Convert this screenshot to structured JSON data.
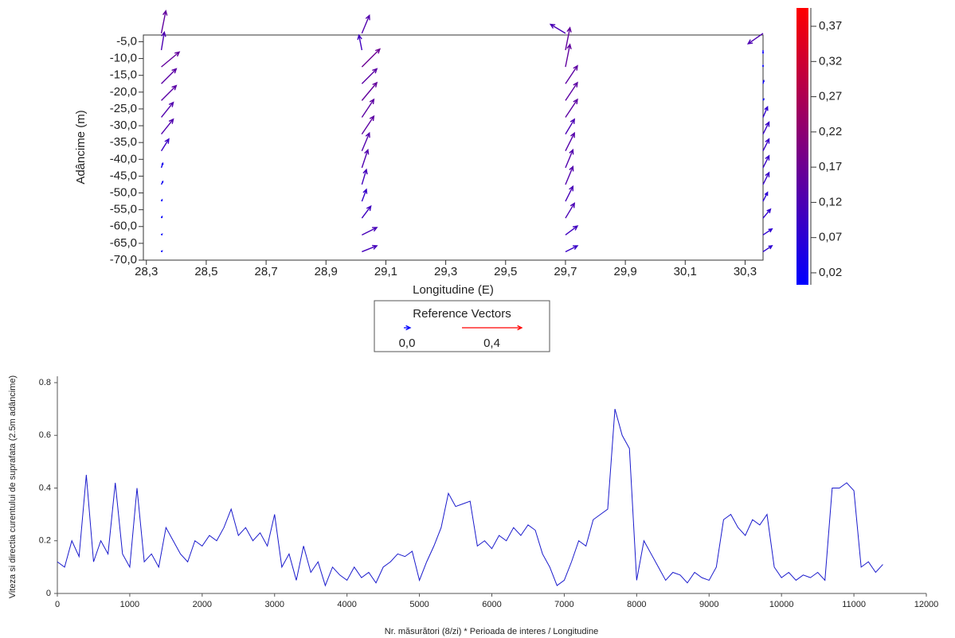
{
  "chart_data": [
    {
      "type": "quiver",
      "x_label": "Longitudine (E)",
      "y_label": "Adâncime (m)",
      "xlim": [
        28.29,
        30.36
      ],
      "ylim": [
        -70,
        -3
      ],
      "xticks": [
        {
          "value": 28.3,
          "label": "28,3"
        },
        {
          "value": 28.5,
          "label": "28,5"
        },
        {
          "value": 28.7,
          "label": "28,7"
        },
        {
          "value": 28.9,
          "label": "28,9"
        },
        {
          "value": 29.1,
          "label": "29,1"
        },
        {
          "value": 29.3,
          "label": "29,3"
        },
        {
          "value": 29.5,
          "label": "29,5"
        },
        {
          "value": 29.7,
          "label": "29,7"
        },
        {
          "value": 29.9,
          "label": "29,9"
        },
        {
          "value": 30.1,
          "label": "30,1"
        },
        {
          "value": 30.3,
          "label": "30,3"
        }
      ],
      "yticks": [
        {
          "value": -70,
          "label": "-70,0"
        },
        {
          "value": -65,
          "label": "-65,0"
        },
        {
          "value": -60,
          "label": "-60,0"
        },
        {
          "value": -55,
          "label": "-55,0"
        },
        {
          "value": -50,
          "label": "-50,0"
        },
        {
          "value": -45,
          "label": "-45,0"
        },
        {
          "value": -40,
          "label": "-40,0"
        },
        {
          "value": -35,
          "label": "-35,0"
        },
        {
          "value": -30,
          "label": "-30,0"
        },
        {
          "value": -25,
          "label": "-25,0"
        },
        {
          "value": -20,
          "label": "-20,0"
        },
        {
          "value": -15,
          "label": "-15,0"
        },
        {
          "value": -10,
          "label": "-10,0"
        },
        {
          "value": -5,
          "label": "-5,0"
        }
      ],
      "clim": [
        0.003,
        0.396
      ],
      "colors": [
        "#0000ff",
        "#ff0000"
      ],
      "cticks": [
        {
          "value": 0.02,
          "label": "0,02"
        },
        {
          "value": 0.07,
          "label": "0,07"
        },
        {
          "value": 0.12,
          "label": "0,12"
        },
        {
          "value": 0.17,
          "label": "0,17"
        },
        {
          "value": 0.22,
          "label": "0,22"
        },
        {
          "value": 0.27,
          "label": "0,27"
        },
        {
          "value": 0.32,
          "label": "0,32"
        },
        {
          "value": 0.37,
          "label": "0,37"
        }
      ],
      "depths": [
        -2.5,
        -7.5,
        -12.5,
        -17.5,
        -22.5,
        -27.5,
        -32.5,
        -37.5,
        -42.5,
        -47.5,
        -52.5,
        -57.5,
        -62.5,
        -67.5
      ],
      "columns": [
        {
          "x": 28.35,
          "u": [
            0.03,
            0.02,
            0.12,
            0.1,
            0.1,
            0.08,
            0.08,
            0.05,
            0.01,
            0.01,
            0.005,
            0.005,
            0.005,
            0.005
          ],
          "v": [
            0.15,
            0.12,
            0.1,
            0.1,
            0.1,
            0.1,
            0.1,
            0.08,
            0.03,
            0.02,
            0.01,
            0.01,
            0.005,
            0.005
          ]
        },
        {
          "x": 29.02,
          "u": [
            0.05,
            -0.02,
            0.12,
            0.1,
            0.1,
            0.08,
            0.08,
            0.05,
            0.04,
            0.03,
            0.03,
            0.06,
            0.1,
            0.1
          ],
          "v": [
            0.12,
            0.1,
            0.12,
            0.1,
            0.12,
            0.12,
            0.12,
            0.12,
            0.12,
            0.1,
            0.08,
            0.08,
            0.05,
            0.04
          ]
        },
        {
          "x": 29.7,
          "u": [
            -0.1,
            0.03,
            0.03,
            0.08,
            0.08,
            0.08,
            0.06,
            0.06,
            0.05,
            0.05,
            0.05,
            0.06,
            0.08,
            0.08
          ],
          "v": [
            0.06,
            0.15,
            0.15,
            0.12,
            0.12,
            0.12,
            0.1,
            0.12,
            0.12,
            0.12,
            0.1,
            0.1,
            0.06,
            0.04
          ]
        },
        {
          "x": 30.36,
          "u": [
            -0.1,
            0.0,
            0.0,
            0.005,
            0.005,
            0.03,
            0.04,
            0.04,
            0.04,
            0.04,
            0.03,
            0.05,
            0.06,
            0.06
          ],
          "v": [
            -0.07,
            -0.02,
            0.01,
            0.02,
            0.01,
            0.07,
            0.08,
            0.08,
            0.08,
            0.08,
            0.06,
            0.06,
            0.04,
            0.04
          ]
        }
      ],
      "legend": {
        "title": "Reference Vectors",
        "items": [
          {
            "value": 0.0,
            "label": "0,0"
          },
          {
            "value": 0.4,
            "label": "0,4"
          }
        ]
      }
    },
    {
      "type": "line",
      "x_label": "Nr. măsurători (8/zi) * Perioada de interes / Longitudine",
      "y_label": "Viteza si directia curentului de suprafata (2.5m adâncime)",
      "xlim": [
        0,
        12000
      ],
      "ylim": [
        0,
        0.8
      ],
      "xticks": [
        0,
        1000,
        2000,
        3000,
        4000,
        5000,
        6000,
        7000,
        8000,
        9000,
        10000,
        11000,
        12000
      ],
      "yticks": [
        0,
        0.2,
        0.4,
        0.6,
        0.8
      ],
      "color": "#1a1acc",
      "x": [
        0,
        100,
        200,
        300,
        400,
        500,
        600,
        700,
        800,
        900,
        1000,
        1100,
        1200,
        1300,
        1400,
        1500,
        1600,
        1700,
        1800,
        1900,
        2000,
        2100,
        2200,
        2300,
        2400,
        2500,
        2600,
        2700,
        2800,
        2900,
        3000,
        3100,
        3200,
        3300,
        3400,
        3500,
        3600,
        3700,
        3800,
        3900,
        4000,
        4100,
        4200,
        4300,
        4400,
        4500,
        4600,
        4700,
        4800,
        4900,
        5000,
        5100,
        5200,
        5300,
        5400,
        5500,
        5600,
        5700,
        5800,
        5900,
        6000,
        6100,
        6200,
        6300,
        6400,
        6500,
        6600,
        6700,
        6800,
        6900,
        7000,
        7100,
        7200,
        7300,
        7400,
        7500,
        7600,
        7700,
        7800,
        7900,
        8000,
        8100,
        8200,
        8300,
        8400,
        8500,
        8600,
        8700,
        8800,
        8900,
        9000,
        9100,
        9200,
        9300,
        9400,
        9500,
        9600,
        9700,
        9800,
        9900,
        10000,
        10100,
        10200,
        10300,
        10400,
        10500,
        10600,
        10700,
        10800,
        10900,
        11000,
        11100,
        11200,
        11300,
        11400
      ],
      "values": [
        0.12,
        0.1,
        0.2,
        0.14,
        0.45,
        0.12,
        0.2,
        0.15,
        0.42,
        0.15,
        0.1,
        0.4,
        0.12,
        0.15,
        0.1,
        0.25,
        0.2,
        0.15,
        0.12,
        0.2,
        0.18,
        0.22,
        0.2,
        0.25,
        0.32,
        0.22,
        0.25,
        0.2,
        0.23,
        0.18,
        0.3,
        0.1,
        0.15,
        0.05,
        0.18,
        0.08,
        0.12,
        0.03,
        0.1,
        0.07,
        0.05,
        0.1,
        0.06,
        0.08,
        0.04,
        0.1,
        0.12,
        0.15,
        0.14,
        0.16,
        0.05,
        0.12,
        0.18,
        0.25,
        0.38,
        0.33,
        0.34,
        0.35,
        0.18,
        0.2,
        0.17,
        0.22,
        0.2,
        0.25,
        0.22,
        0.26,
        0.24,
        0.15,
        0.1,
        0.03,
        0.05,
        0.12,
        0.2,
        0.18,
        0.28,
        0.3,
        0.32,
        0.7,
        0.6,
        0.55,
        0.05,
        0.2,
        0.15,
        0.1,
        0.05,
        0.08,
        0.07,
        0.04,
        0.08,
        0.06,
        0.05,
        0.1,
        0.28,
        0.3,
        0.25,
        0.22,
        0.28,
        0.26,
        0.3,
        0.1,
        0.06,
        0.08,
        0.05,
        0.07,
        0.06,
        0.08,
        0.05,
        0.4,
        0.4,
        0.42,
        0.39,
        0.1,
        0.12,
        0.08,
        0.11
      ]
    }
  ]
}
